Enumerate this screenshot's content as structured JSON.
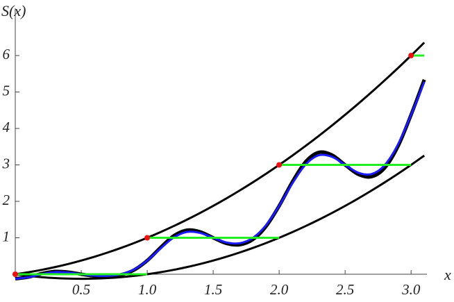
{
  "chart_data": {
    "type": "line",
    "ylabel": "S(x)",
    "xlabel": "x",
    "xlim": [
      0,
      3.12
    ],
    "ylim": [
      -0.1,
      7.3
    ],
    "xticks": [
      0.5,
      {
        "value": 1,
        "label": "1.0"
      },
      1.5,
      {
        "value": 2,
        "label": "2.0"
      },
      2.5,
      {
        "value": 3,
        "label": "3.0"
      }
    ],
    "yticks": [
      1,
      2,
      3,
      4,
      5,
      6
    ],
    "x": [
      0,
      0.1,
      0.2,
      0.3,
      0.4,
      0.5,
      0.6,
      0.7,
      0.8,
      0.9,
      1,
      1.1,
      1.2,
      1.3,
      1.4,
      1.5,
      1.6,
      1.7,
      1.8,
      1.9,
      2,
      2.1,
      2.2,
      2.3,
      2.4,
      2.5,
      2.6,
      2.7,
      2.8,
      2.9,
      3,
      3.1
    ],
    "series": [
      {
        "color": "#000000",
        "width": 3,
        "values": [
          0,
          0.055,
          0.12,
          0.195,
          0.28,
          0.375,
          0.48,
          0.595,
          0.72,
          0.855,
          1,
          1.155,
          1.32,
          1.495,
          1.68,
          1.875,
          2.08,
          2.295,
          2.52,
          2.755,
          3,
          3.255,
          3.52,
          3.795,
          4.08,
          4.375,
          4.68,
          4.995,
          5.32,
          5.655,
          6,
          6.355
        ]
      },
      {
        "color": "#000000",
        "width": 3,
        "values": [
          0,
          -0.045,
          -0.08,
          -0.105,
          -0.12,
          -0.125,
          -0.12,
          -0.105,
          -0.08,
          -0.045,
          0,
          0.055,
          0.12,
          0.195,
          0.28,
          0.375,
          0.48,
          0.595,
          0.72,
          0.855,
          1,
          1.155,
          1.32,
          1.495,
          1.68,
          1.875,
          2.08,
          2.295,
          2.52,
          2.755,
          3,
          3.255
        ]
      },
      {
        "color": "#000000",
        "width": 5,
        "values": [
          -0.125,
          -0.0782,
          0.017,
          0.0753,
          0.0585,
          0,
          -0.0473,
          -0.0577,
          -0.016,
          0.116,
          0.375,
          0.7276,
          1.0501,
          1.2084,
          1.1643,
          1,
          0.8469,
          0.8093,
          0.951,
          1.3102,
          1.875,
          2.5334,
          3.083,
          3.3413,
          3.2701,
          3,
          2.7411,
          2.6763,
          2.918,
          3.5044,
          4.375,
          5.3392
        ]
      },
      {
        "color": "#1a1aff",
        "width": 3,
        "values": [
          -0.125,
          -0.0838,
          0.0014,
          0.0566,
          0.0473,
          0,
          -0.0398,
          -0.0461,
          -0.0013,
          0.1291,
          0.375,
          0.7033,
          1.0041,
          1.1593,
          1.1344,
          1,
          0.8731,
          0.8512,
          0.996,
          1.342,
          1.875,
          2.4904,
          3.0068,
          3.262,
          3.2215,
          3,
          2.786,
          2.7486,
          2.9933,
          3.5549,
          4.375,
          5.2775
        ]
      }
    ],
    "steps": {
      "color": "#22ee22",
      "x": [
        [
          0,
          1
        ],
        [
          1,
          2
        ],
        [
          2,
          3
        ],
        [
          3,
          3.1
        ]
      ],
      "values": [
        0,
        1,
        3,
        6
      ]
    },
    "points": {
      "color": "#ee1111",
      "x": [
        0,
        1,
        2,
        3
      ],
      "values": [
        0,
        1,
        3,
        6
      ]
    }
  }
}
